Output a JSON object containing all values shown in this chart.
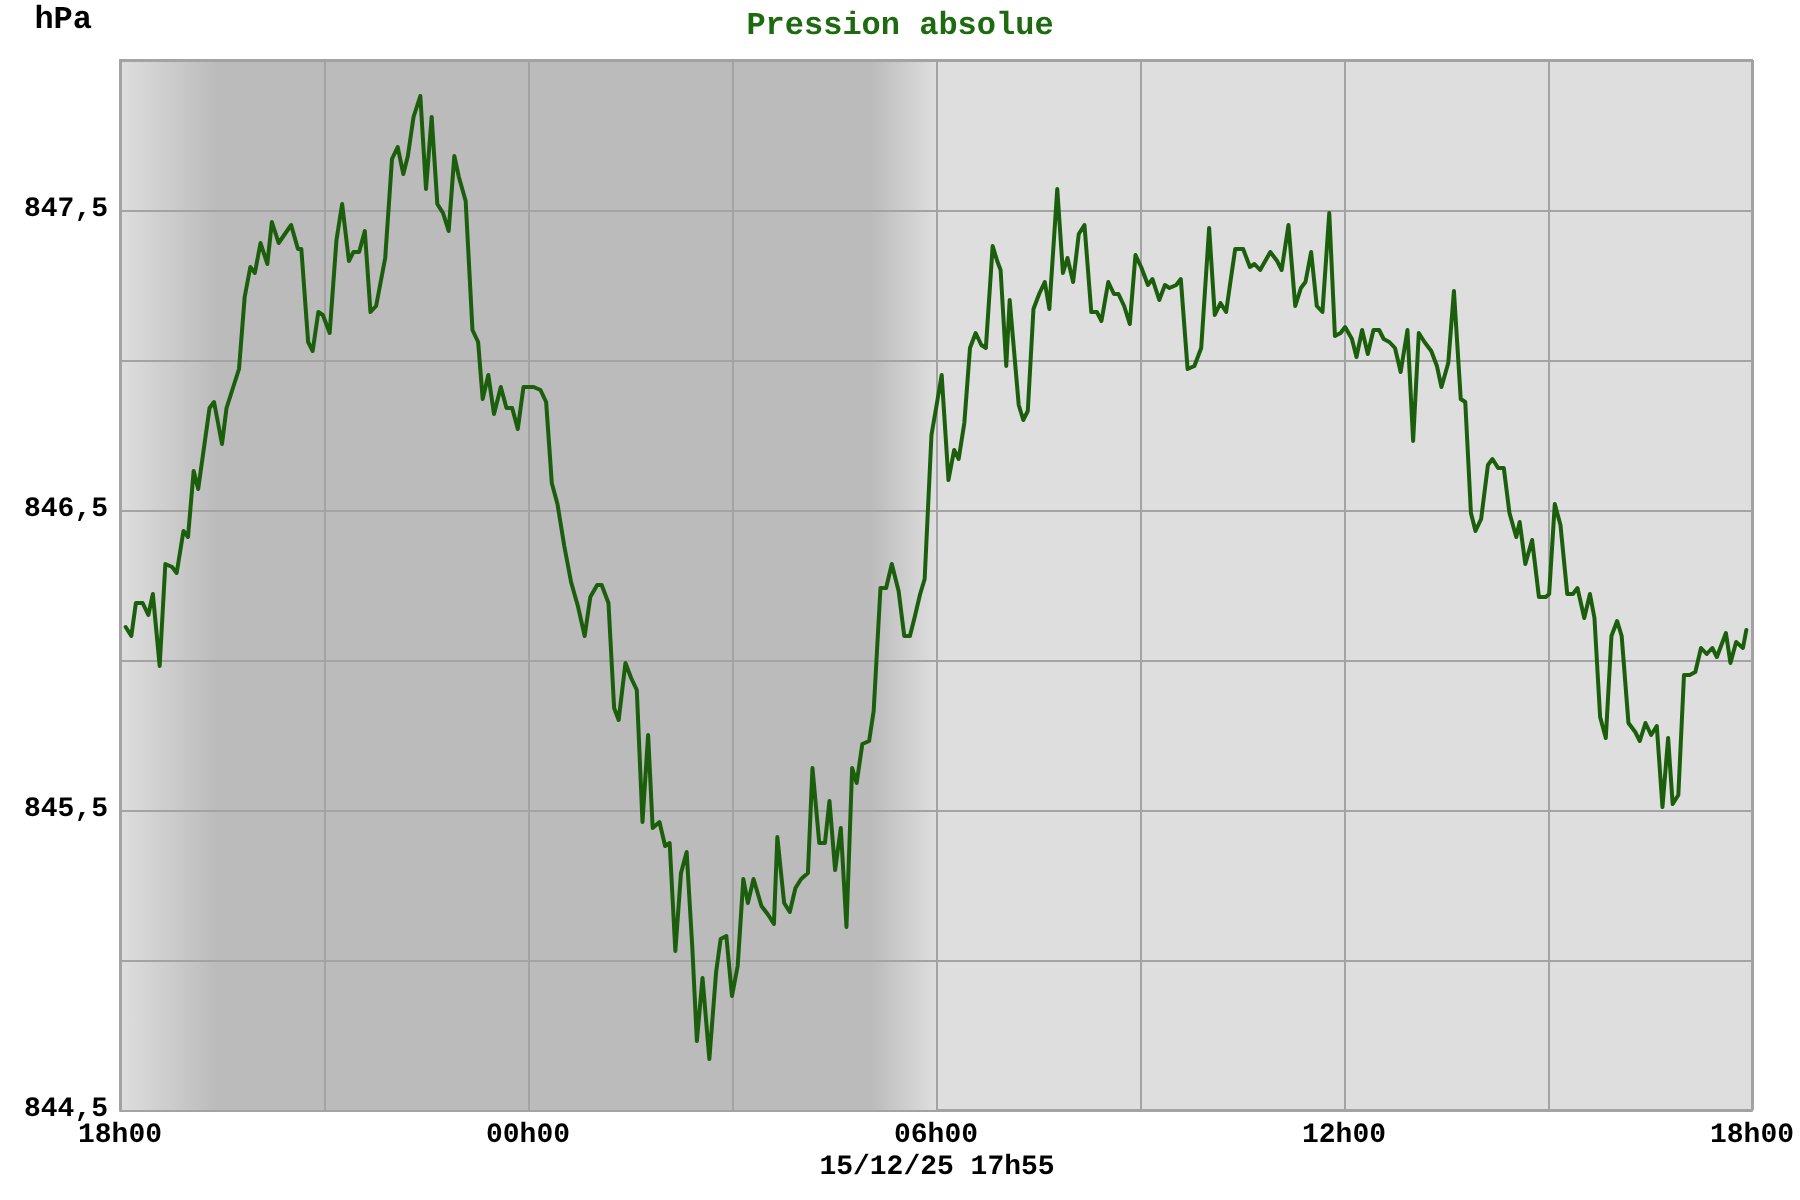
{
  "chart_data": {
    "type": "line",
    "title": "Pression absolue",
    "ylabel": "hPa",
    "annotations": [
      "15/12/25 17h55"
    ],
    "xlim": [
      "--12-14T18:00",
      "--12-15T18:00"
    ],
    "xticks": [
      {
        "value": "--12-14T18:00",
        "label": "18h00"
      },
      {
        "value": "--12-14T21:00",
        "label": null
      },
      {
        "value": "--12-15T00:00",
        "label": "00h00"
      },
      {
        "value": "--12-15T03:00",
        "label": null
      },
      {
        "value": "--12-15T06:00",
        "label": "06h00"
      },
      {
        "value": "--12-15T09:00",
        "label": null
      },
      {
        "value": "--12-15T12:00",
        "label": "12h00"
      },
      {
        "value": "--12-15T15:00",
        "label": null
      },
      {
        "value": "--12-15T18:00",
        "label": "18h00"
      }
    ],
    "ylim": [
      844.5,
      848
    ],
    "yticks": [
      {
        "value": 844.5,
        "label": "844,5"
      },
      {
        "value": 845,
        "label": null
      },
      {
        "value": 845.5,
        "label": "845,5"
      },
      {
        "value": 846,
        "label": null
      },
      {
        "value": 846.5,
        "label": "846,5"
      },
      {
        "value": 847,
        "label": null
      },
      {
        "value": 847.5,
        "label": "847,5"
      }
    ],
    "grid": true,
    "bands": [
      {
        "axis": "x",
        "from": "--12-14T18:00",
        "to": "--12-15T06:00",
        "color": "#bbbbbb"
      }
    ],
    "x": [
      "--12-14T18:05",
      "--12-14T18:10",
      "--12-14T18:14",
      "--12-14T18:20",
      "--12-14T18:25",
      "--12-14T18:29",
      "--12-14T18:35",
      "--12-14T18:40",
      "--12-14T18:46",
      "--12-14T18:50",
      "--12-14T18:56",
      "--12-14T19:00",
      "--12-14T19:05",
      "--12-14T19:09",
      "--12-14T19:19",
      "--12-14T19:23",
      "--12-14T19:30",
      "--12-14T19:34",
      "--12-14T19:45",
      "--12-14T19:50",
      "--12-14T19:55",
      "--12-14T19:59",
      "--12-14T20:04",
      "--12-14T20:10",
      "--12-14T20:14",
      "--12-14T20:20",
      "--12-14T20:31",
      "--12-14T20:37",
      "--12-14T20:40",
      "--12-14T20:46",
      "--12-14T20:50",
      "--12-14T20:55",
      "--12-14T20:59",
      "--12-14T21:05",
      "--12-14T21:11",
      "--12-14T21:16",
      "--12-14T21:22",
      "--12-14T21:26",
      "--12-14T21:31",
      "--12-14T21:36",
      "--12-14T21:41",
      "--12-14T21:46",
      "--12-14T21:54",
      "--12-14T22:00",
      "--12-14T22:05",
      "--12-14T22:10",
      "--12-14T22:14",
      "--12-14T22:19",
      "--12-14T22:25",
      "--12-14T22:30",
      "--12-14T22:35",
      "--12-14T22:40",
      "--12-14T22:45",
      "--12-14T22:50",
      "--12-14T22:55",
      "--12-14T22:59",
      "--12-14T23:05",
      "--12-14T23:11",
      "--12-14T23:16",
      "--12-14T23:20",
      "--12-14T23:25",
      "--12-14T23:30",
      "--12-14T23:36",
      "--12-14T23:41",
      "--12-14T23:46",
      "--12-14T23:51",
      "--12-14T23:56",
      "--12-15T00:05",
      "--12-15T00:11",
      "--12-15T00:16",
      "--12-15T00:21",
      "--12-15T00:26",
      "--12-15T00:32",
      "--12-15T00:38",
      "--12-15T00:44",
      "--12-15T00:50",
      "--12-15T00:55",
      "--12-15T01:01",
      "--12-15T01:05",
      "--12-15T01:11",
      "--12-15T01:16",
      "--12-15T01:20",
      "--12-15T01:26",
      "--12-15T01:31",
      "--12-15T01:36",
      "--12-15T01:41",
      "--12-15T01:46",
      "--12-15T01:50",
      "--12-15T01:56",
      "--12-15T02:01",
      "--12-15T02:05",
      "--12-15T02:10",
      "--12-15T02:15",
      "--12-15T02:20",
      "--12-15T02:25",
      "--12-15T02:29",
      "--12-15T02:34",
      "--12-15T02:40",
      "--12-15T02:46",
      "--12-15T02:50",
      "--12-15T02:55",
      "--12-15T03:00",
      "--12-15T03:05",
      "--12-15T03:10",
      "--12-15T03:14",
      "--12-15T03:19",
      "--12-15T03:26",
      "--12-15T03:32",
      "--12-15T03:37",
      "--12-15T03:40",
      "--12-15T03:46",
      "--12-15T03:51",
      "--12-15T03:56",
      "--12-15T04:01",
      "--12-15T04:07",
      "--12-15T04:11",
      "--12-15T04:17",
      "--12-15T04:22",
      "--12-15T04:26",
      "--12-15T04:31",
      "--12-15T04:36",
      "--12-15T04:41",
      "--12-15T04:46",
      "--12-15T04:50",
      "--12-15T04:55",
      "--12-15T05:01",
      "--12-15T05:05",
      "--12-15T05:11",
      "--12-15T05:16",
      "--12-15T05:21",
      "--12-15T05:27",
      "--12-15T05:32",
      "--12-15T05:37",
      "--12-15T05:41",
      "--12-15T05:46",
      "--12-15T05:50",
      "--12-15T05:56",
      "--12-15T06:01",
      "--12-15T06:05",
      "--12-15T06:11",
      "--12-15T06:16",
      "--12-15T06:20",
      "--12-15T06:25",
      "--12-15T06:30",
      "--12-15T06:35",
      "--12-15T06:40",
      "--12-15T06:44",
      "--12-15T06:50",
      "--12-15T06:54",
      "--12-15T06:57",
      "--12-15T07:02",
      "--12-15T07:05",
      "--12-15T07:13",
      "--12-15T07:17",
      "--12-15T07:21",
      "--12-15T07:26",
      "--12-15T07:31",
      "--12-15T07:36",
      "--12-15T07:40",
      "--12-15T07:47",
      "--12-15T07:52",
      "--12-15T07:56",
      "--12-15T08:01",
      "--12-15T08:06",
      "--12-15T08:11",
      "--12-15T08:17",
      "--12-15T08:22",
      "--12-15T08:26",
      "--12-15T08:32",
      "--12-15T08:37",
      "--12-15T08:41",
      "--12-15T08:46",
      "--12-15T08:51",
      "--12-15T08:56",
      "--12-15T09:01",
      "--12-15T09:07",
      "--12-15T09:11",
      "--12-15T09:17",
      "--12-15T09:22",
      "--12-15T09:26",
      "--12-15T09:32",
      "--12-15T09:36",
      "--12-15T09:42",
      "--12-15T09:48",
      "--12-15T09:54",
      "--12-15T10:01",
      "--12-15T10:06",
      "--12-15T10:11",
      "--12-15T10:16",
      "--12-15T10:19",
      "--12-15T10:24",
      "--12-15T10:31",
      "--12-15T10:37",
      "--12-15T10:41",
      "--12-15T10:46",
      "--12-15T10:55",
      "--12-15T11:01",
      "--12-15T11:05",
      "--12-15T11:11",
      "--12-15T11:17",
      "--12-15T11:22",
      "--12-15T11:26",
      "--12-15T11:31",
      "--12-15T11:36",
      "--12-15T11:41",
      "--12-15T11:47",
      "--12-15T11:52",
      "--12-15T11:57",
      "--12-15T12:01",
      "--12-15T12:07",
      "--12-15T12:11",
      "--12-15T12:16",
      "--12-15T12:21",
      "--12-15T12:26",
      "--12-15T12:31",
      "--12-15T12:35",
      "--12-15T12:40",
      "--12-15T12:45",
      "--12-15T12:50",
      "--12-15T12:56",
      "--12-15T13:01",
      "--12-15T13:06",
      "--12-15T13:11",
      "--12-15T13:17",
      "--12-15T13:22",
      "--12-15T13:26",
      "--12-15T13:32",
      "--12-15T13:37",
      "--12-15T13:43",
      "--12-15T13:47",
      "--12-15T13:52",
      "--12-15T13:56",
      "--12-15T14:01",
      "--12-15T14:07",
      "--12-15T14:11",
      "--12-15T14:16",
      "--12-15T14:21",
      "--12-15T14:26",
      "--12-15T14:32",
      "--12-15T14:35",
      "--12-15T14:40",
      "--12-15T14:46",
      "--12-15T14:52",
      "--12-15T14:58",
      "--12-15T15:01",
      "--12-15T15:06",
      "--12-15T15:11",
      "--12-15T15:17",
      "--12-15T15:22",
      "--12-15T15:26",
      "--12-15T15:32",
      "--12-15T15:37",
      "--12-15T15:41",
      "--12-15T15:46",
      "--12-15T15:51",
      "--12-15T15:56",
      "--12-15T16:01",
      "--12-15T16:05",
      "--12-15T16:11",
      "--12-15T16:17",
      "--12-15T16:21",
      "--12-15T16:26",
      "--12-15T16:31",
      "--12-15T16:36",
      "--12-15T16:41",
      "--12-15T16:46",
      "--12-15T16:50",
      "--12-15T16:55",
      "--12-15T17:00",
      "--12-15T17:05",
      "--12-15T17:10",
      "--12-15T17:15",
      "--12-15T17:20",
      "--12-15T17:25",
      "--12-15T17:29",
      "--12-15T17:37",
      "--12-15T17:41",
      "--12-15T17:46",
      "--12-15T17:52",
      "--12-15T17:55"
    ],
    "series": [
      {
        "color": "#1b5e0c",
        "values": [
          846.11,
          846.08,
          846.19,
          846.19,
          846.15,
          846.22,
          845.98,
          846.32,
          846.31,
          846.29,
          846.43,
          846.41,
          846.63,
          846.57,
          846.84,
          846.86,
          846.72,
          846.84,
          846.97,
          847.21,
          847.31,
          847.29,
          847.39,
          847.32,
          847.46,
          847.39,
          847.45,
          847.37,
          847.37,
          847.06,
          847.03,
          847.16,
          847.15,
          847.09,
          847.4,
          847.52,
          847.33,
          847.36,
          847.36,
          847.43,
          847.16,
          847.18,
          847.34,
          847.67,
          847.71,
          847.62,
          847.68,
          847.81,
          847.88,
          847.57,
          847.81,
          847.52,
          847.49,
          847.43,
          847.68,
          847.61,
          847.53,
          847.1,
          847.06,
          846.87,
          846.95,
          846.82,
          846.91,
          846.84,
          846.84,
          846.77,
          846.91,
          846.91,
          846.9,
          846.86,
          846.59,
          846.52,
          846.38,
          846.26,
          846.18,
          846.08,
          846.21,
          846.25,
          846.25,
          846.19,
          845.84,
          845.8,
          845.99,
          845.94,
          845.9,
          845.46,
          845.75,
          845.44,
          845.46,
          845.38,
          845.39,
          845.03,
          845.29,
          845.36,
          845.04,
          844.73,
          844.94,
          844.67,
          844.96,
          845.07,
          845.08,
          844.88,
          844.98,
          845.27,
          845.19,
          845.27,
          845.18,
          845.15,
          845.12,
          845.41,
          845.19,
          845.16,
          845.24,
          845.27,
          845.29,
          845.64,
          845.39,
          845.39,
          845.53,
          845.3,
          845.44,
          845.11,
          845.64,
          845.59,
          845.72,
          845.73,
          845.83,
          846.24,
          846.24,
          846.32,
          846.23,
          846.08,
          846.08,
          846.14,
          846.22,
          846.27,
          846.75,
          846.86,
          846.95,
          846.6,
          846.7,
          846.67,
          846.79,
          847.04,
          847.09,
          847.05,
          847.04,
          847.38,
          847.33,
          847.3,
          846.98,
          847.2,
          846.85,
          846.8,
          846.83,
          847.17,
          847.22,
          847.26,
          847.17,
          847.57,
          847.29,
          847.34,
          847.26,
          847.42,
          847.45,
          847.16,
          847.16,
          847.13,
          847.26,
          847.22,
          847.22,
          847.18,
          847.12,
          847.35,
          847.31,
          847.25,
          847.27,
          847.2,
          847.25,
          847.24,
          847.25,
          847.27,
          846.97,
          846.98,
          847.04,
          847.44,
          847.15,
          847.19,
          847.16,
          847.24,
          847.37,
          847.37,
          847.31,
          847.32,
          847.3,
          847.36,
          847.33,
          847.3,
          847.45,
          847.18,
          847.24,
          847.26,
          847.36,
          847.18,
          847.16,
          847.49,
          847.08,
          847.09,
          847.11,
          847.07,
          847.01,
          847.1,
          847.02,
          847.1,
          847.1,
          847.07,
          847.06,
          847.04,
          846.96,
          847.1,
          846.73,
          847.09,
          847.06,
          847.03,
          846.98,
          846.91,
          846.99,
          847.23,
          846.87,
          846.86,
          846.49,
          846.43,
          846.47,
          846.65,
          846.67,
          846.64,
          846.64,
          846.49,
          846.41,
          846.46,
          846.32,
          846.4,
          846.21,
          846.21,
          846.22,
          846.52,
          846.45,
          846.22,
          846.22,
          846.24,
          846.14,
          846.22,
          846.14,
          845.81,
          845.74,
          846.08,
          846.13,
          846.08,
          845.79,
          845.76,
          845.73,
          845.79,
          845.75,
          845.78,
          845.51,
          845.74,
          845.52,
          845.55,
          845.95,
          845.95,
          845.96,
          846.04,
          846.02,
          846.04,
          846.01,
          846.09,
          845.99,
          846.06,
          846.04,
          846.1
        ]
      }
    ]
  }
}
